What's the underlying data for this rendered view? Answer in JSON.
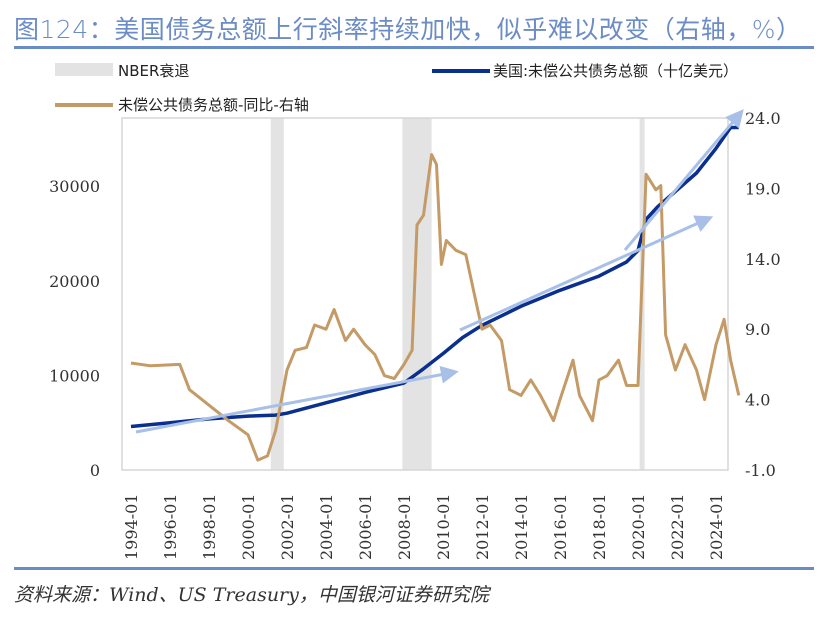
{
  "title": "图124：美国债务总额上行斜率持续加快，似乎难以改变（右轴，%）",
  "source": "资料来源：Wind、US Treasury，中国银河证券研究院",
  "chart_data": {
    "type": "line",
    "legend": {
      "placement": "top",
      "entries": [
        "NBER衰退",
        "美国:未偿公共债务总额（十亿美元）",
        "未偿公共债务总额-同比-右轴"
      ]
    },
    "colors": {
      "recession": "#e3e3e3",
      "debt": "#0a2f8f",
      "yoy": "#c49a66",
      "arrow": "#a8c0e8"
    },
    "x_ticks": [
      "1994-01",
      "1996-01",
      "1998-01",
      "2000-01",
      "2002-01",
      "2004-01",
      "2006-01",
      "2008-01",
      "2010-01",
      "2012-01",
      "2014-01",
      "2016-01",
      "2018-01",
      "2020-01",
      "2022-01",
      "2024-01"
    ],
    "y_left": {
      "range": [
        0,
        37000
      ],
      "ticks": [
        "0",
        "10000",
        "20000",
        "30000"
      ]
    },
    "y_right": {
      "range": [
        -1.0,
        24.0
      ],
      "ticks": [
        "-1.0",
        "4.0",
        "9.0",
        "14.0",
        "19.0",
        "24.0"
      ]
    },
    "recessions": [
      [
        "2001-03",
        "2001-11"
      ],
      [
        "2007-12",
        "2009-06"
      ],
      [
        "2020-02",
        "2020-04"
      ]
    ],
    "series": [
      {
        "name": "美国:未偿公共债务总额（十亿美元）",
        "axis": "left",
        "x": [
          "1994-01",
          "1996-01",
          "1998-01",
          "2000-01",
          "2001-06",
          "2002-01",
          "2004-01",
          "2006-01",
          "2008-01",
          "2009-01",
          "2010-01",
          "2011-01",
          "2012-01",
          "2014-01",
          "2016-01",
          "2018-01",
          "2019-06",
          "2020-01",
          "2020-06",
          "2021-01",
          "2022-01",
          "2023-01",
          "2024-01",
          "2024-10",
          "2025-03"
        ],
        "values": [
          4600,
          5000,
          5400,
          5700,
          5800,
          6000,
          7100,
          8200,
          9200,
          10700,
          12300,
          14000,
          15300,
          17300,
          19000,
          20500,
          22000,
          23200,
          26500,
          27800,
          29600,
          31400,
          34000,
          36200,
          36200
        ]
      },
      {
        "name": "未偿公共债务总额-同比-右轴",
        "axis": "right",
        "x": [
          "1994-01",
          "1995-01",
          "1996-07",
          "1997-01",
          "1998-01",
          "1999-01",
          "2000-01",
          "2000-07",
          "2001-01",
          "2001-06",
          "2002-01",
          "2002-06",
          "2003-01",
          "2003-06",
          "2004-01",
          "2004-06",
          "2005-01",
          "2005-06",
          "2006-01",
          "2006-07",
          "2007-01",
          "2007-07",
          "2008-01",
          "2008-06",
          "2008-09",
          "2009-01",
          "2009-06",
          "2009-09",
          "2009-12",
          "2010-03",
          "2010-09",
          "2011-03",
          "2011-09",
          "2012-01",
          "2012-06",
          "2013-01",
          "2013-06",
          "2014-01",
          "2014-07",
          "2015-01",
          "2015-09",
          "2016-01",
          "2016-09",
          "2017-01",
          "2017-09",
          "2018-01",
          "2018-06",
          "2019-01",
          "2019-06",
          "2020-01",
          "2020-06",
          "2020-12",
          "2021-03",
          "2021-06",
          "2021-12",
          "2022-06",
          "2023-01",
          "2023-06",
          "2024-01",
          "2024-06",
          "2024-10",
          "2025-03"
        ],
        "values": [
          6.6,
          6.4,
          6.5,
          4.7,
          3.6,
          2.5,
          1.5,
          -0.3,
          0.0,
          1.8,
          6.1,
          7.5,
          7.7,
          9.3,
          9.0,
          10.4,
          8.2,
          9.0,
          7.9,
          7.2,
          5.7,
          5.5,
          6.5,
          7.5,
          16.4,
          17.1,
          21.4,
          20.7,
          13.6,
          15.3,
          14.6,
          14.3,
          11.1,
          9.0,
          9.3,
          8.2,
          4.7,
          4.3,
          5.4,
          4.3,
          2.5,
          4.0,
          6.8,
          4.3,
          2.5,
          5.4,
          5.7,
          6.8,
          5.0,
          5.0,
          20.0,
          18.9,
          19.2,
          8.6,
          6.1,
          7.9,
          6.1,
          4.0,
          7.9,
          9.7,
          6.8,
          4.3
        ]
      }
    ]
  }
}
